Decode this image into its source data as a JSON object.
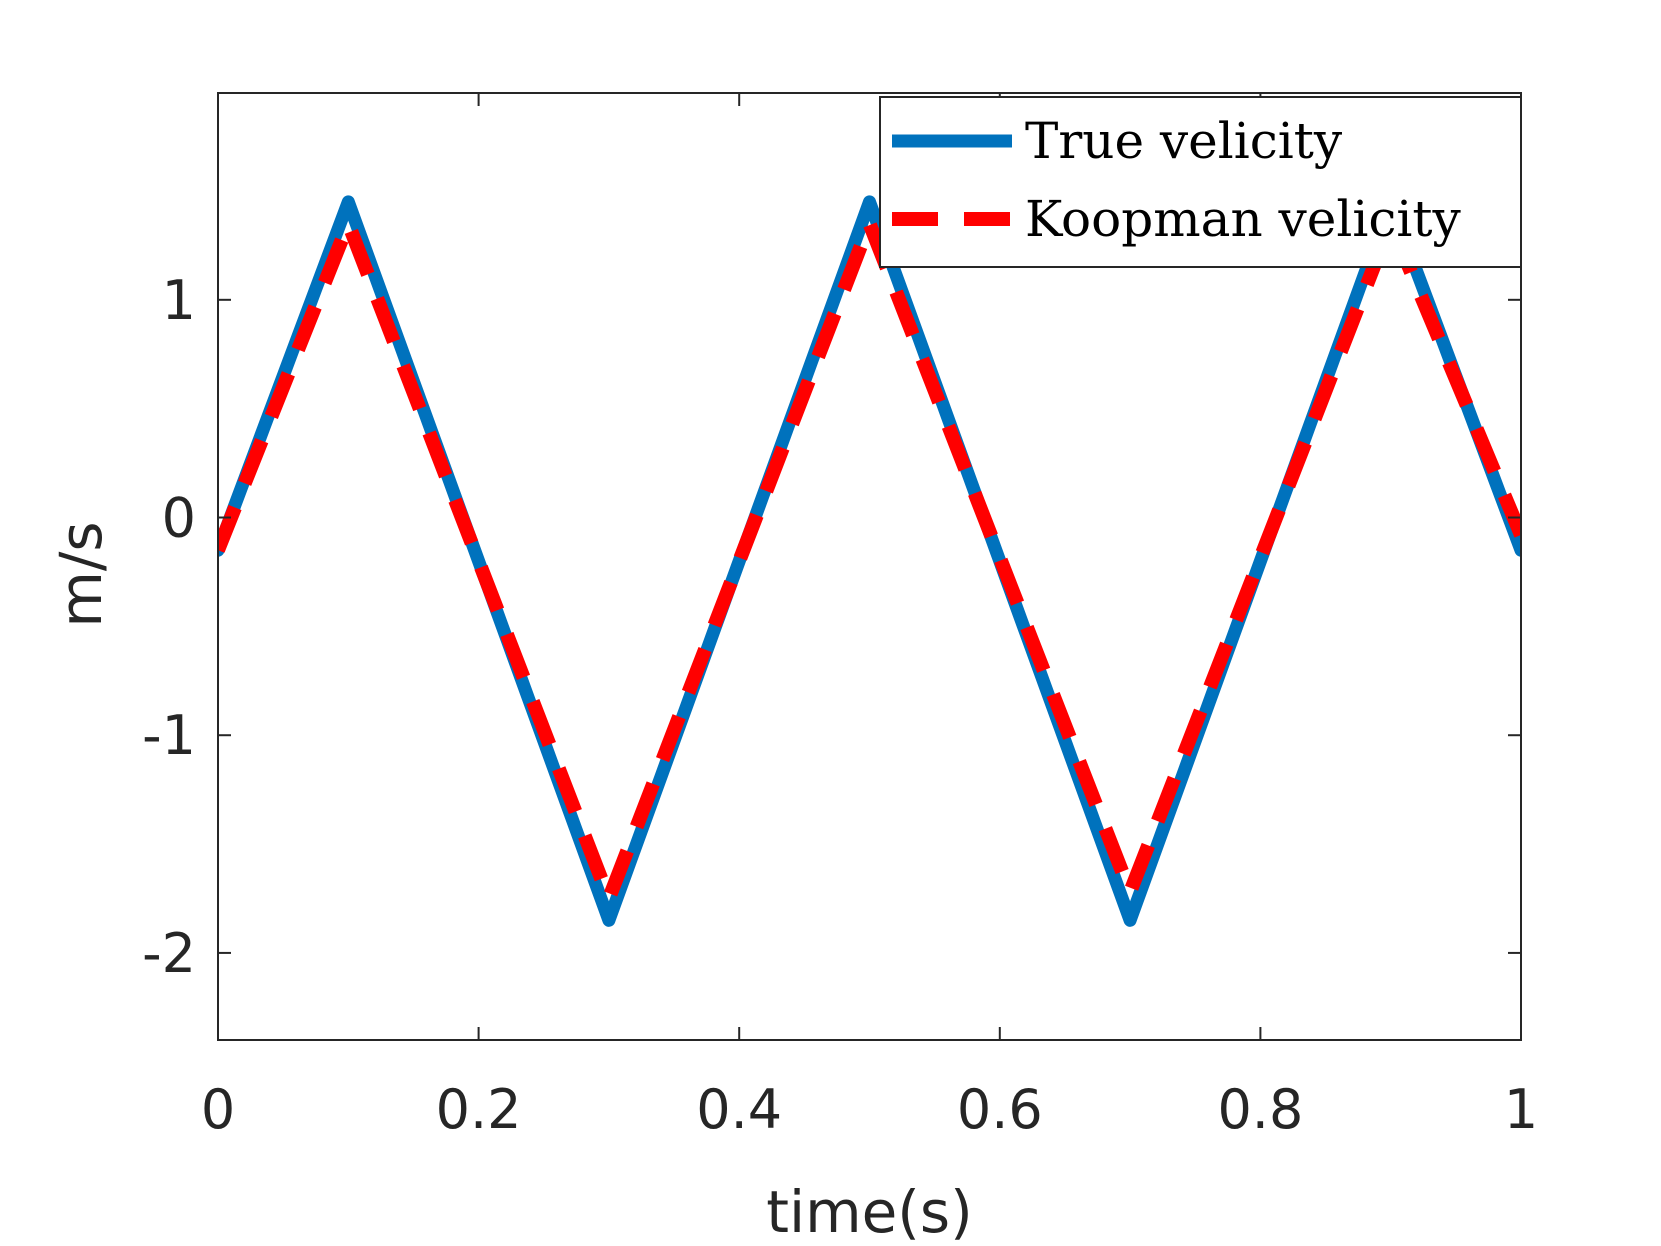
{
  "chart_data": {
    "type": "line",
    "title": "",
    "xlabel": "time(s)",
    "ylabel": "m/s",
    "xlim": [
      0,
      1
    ],
    "ylim": [
      -2.4,
      1.95
    ],
    "xticks": [
      0,
      0.2,
      0.4,
      0.6,
      0.8,
      1
    ],
    "xtick_labels": [
      "0",
      "0.2",
      "0.4",
      "0.6",
      "0.8",
      "1"
    ],
    "yticks": [
      -2,
      -1,
      0,
      1
    ],
    "ytick_labels": [
      "-2",
      "-1",
      "0",
      "1"
    ],
    "grid": false,
    "legend_position": "top-right",
    "series": [
      {
        "name": "True velicity",
        "color": "#0072BD",
        "style": "solid",
        "x": [
          0,
          0.1,
          0.3,
          0.5,
          0.7,
          0.9,
          1
        ],
        "y": [
          -0.15,
          1.45,
          -1.85,
          1.45,
          -1.85,
          1.45,
          -0.15
        ]
      },
      {
        "name": "Koopman velicity",
        "color": "#FF0000",
        "style": "dashed",
        "x": [
          0,
          0.1,
          0.3,
          0.5,
          0.7,
          0.9,
          1
        ],
        "y": [
          -0.15,
          1.35,
          -1.75,
          1.35,
          -1.72,
          1.35,
          -0.08
        ]
      }
    ]
  }
}
